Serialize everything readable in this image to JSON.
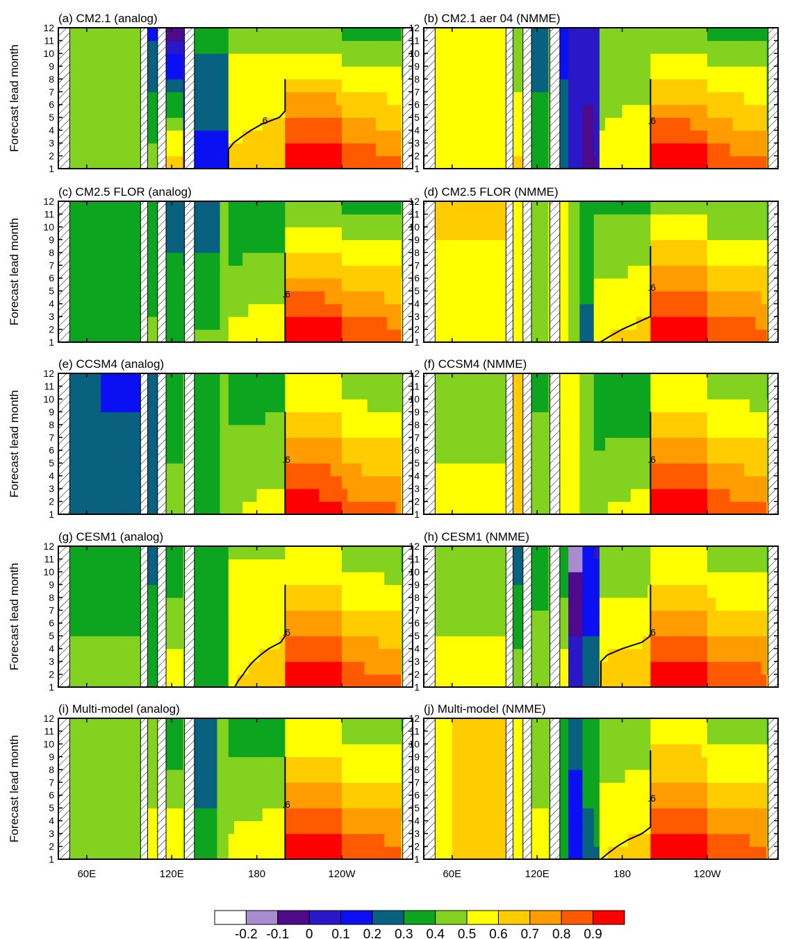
{
  "chart_data": {
    "type": "heatmap",
    "ylabel": "Forecast lead month",
    "y_ticks": [
      1,
      2,
      3,
      4,
      5,
      6,
      7,
      8,
      9,
      10,
      11,
      12
    ],
    "ylim": [
      1,
      12
    ],
    "xlim": [
      40,
      290
    ],
    "x_ticks": [
      {
        "lon": 60,
        "label": "60E"
      },
      {
        "lon": 120,
        "label": "120E"
      },
      {
        "lon": 180,
        "label": "180"
      },
      {
        "lon": 240,
        "label": "120W"
      }
    ],
    "colorbar": {
      "labels": [
        "-0.2",
        "-0.1",
        "0",
        "0.1",
        "0.2",
        "0.3",
        "0.4",
        "0.5",
        "0.6",
        "0.7",
        "0.8",
        "0.9"
      ],
      "levels": [
        -0.2,
        -0.1,
        0,
        0.1,
        0.2,
        0.3,
        0.4,
        0.5,
        0.6,
        0.7,
        0.8,
        0.9
      ],
      "colors": [
        "#ffffff",
        "#a98bcf",
        "#4d0a8a",
        "#2a18c8",
        "#0b10f3",
        "#08617e",
        "#0da520",
        "#82d21f",
        "#ffff00",
        "#ffcc00",
        "#ff9c00",
        "#ff5a00",
        "#ff0000"
      ]
    },
    "contour_level": 0.6,
    "contour_label": ".6",
    "land_mask_lon": [
      [
        40,
        48
      ],
      [
        98,
        103
      ],
      [
        110,
        116
      ],
      [
        129,
        136
      ],
      [
        283,
        290
      ]
    ],
    "panels": [
      {
        "label": "(a) CM2.1 (analog)",
        "bands": [
          [
            48,
            1,
            0.5,
            0.44
          ],
          [
            98,
            1,
            0.43
          ],
          [
            103,
            1,
            0.45,
            0.18
          ],
          [
            110,
            1,
            0.44,
            0.05
          ],
          [
            116,
            1,
            0.68,
            -0.05
          ],
          [
            129,
            1,
            0.0
          ],
          [
            136,
            1,
            0.15,
            0.33
          ],
          [
            160,
            1,
            0.58,
            0.62
          ],
          [
            200,
            1,
            0.96,
            0.55
          ],
          [
            240,
            1,
            0.84,
            0.5
          ],
          [
            283,
            1,
            0.58
          ]
        ]
      },
      {
        "label": "(b) CM2.1 aer 04 (NMME)",
        "bands": [
          [
            48,
            1,
            0.58
          ],
          [
            98,
            1,
            0.58
          ],
          [
            103,
            1,
            0.63,
            0.4
          ],
          [
            110,
            1,
            0.26
          ],
          [
            116,
            1,
            0.4,
            0.2
          ],
          [
            129,
            1,
            0.45
          ],
          [
            136,
            1,
            0.3,
            0.15
          ],
          [
            142,
            1,
            0.05
          ],
          [
            152,
            1,
            -0.05,
            0.05
          ],
          [
            165,
            1,
            0.48,
            0.55
          ],
          [
            200,
            1,
            0.92,
            0.55
          ],
          [
            240,
            1,
            0.83,
            0.5
          ],
          [
            283,
            1,
            0.42
          ]
        ]
      },
      {
        "label": "(c) CM2.5 FLOR (analog)",
        "bands": [
          [
            48,
            1,
            0.4,
            0.35
          ],
          [
            98,
            1,
            0.45
          ],
          [
            103,
            1,
            0.42,
            0.3
          ],
          [
            110,
            1,
            0.28,
            0.18
          ],
          [
            116,
            1,
            0.38,
            0.25
          ],
          [
            129,
            1,
            0.35,
            0.25
          ],
          [
            136,
            1,
            0.42,
            0.22
          ],
          [
            155,
            1,
            0.5,
            0.4
          ],
          [
            200,
            1,
            0.92,
            0.55
          ],
          [
            240,
            1,
            0.85,
            0.5
          ],
          [
            283,
            1,
            0.55
          ]
        ]
      },
      {
        "label": "(d) CM2.5 FLOR (NMME)",
        "bands": [
          [
            48,
            1,
            0.55,
            0.62
          ],
          [
            98,
            1,
            0.55,
            0.62
          ],
          [
            103,
            1,
            0.55
          ],
          [
            110,
            1,
            0.6
          ],
          [
            116,
            1,
            0.5,
            0.4
          ],
          [
            129,
            1,
            0.58
          ],
          [
            136,
            1,
            0.55
          ],
          [
            142,
            1,
            0.45,
            0.4
          ],
          [
            150,
            1,
            0.28,
            0.35
          ],
          [
            160,
            1,
            0.55,
            0.5
          ],
          [
            200,
            1,
            0.95,
            0.6
          ],
          [
            240,
            1,
            0.85,
            0.52
          ],
          [
            283,
            1,
            0.48
          ]
        ]
      },
      {
        "label": "(e) CCSM4 (analog)",
        "bands": [
          [
            48,
            1,
            0.3,
            0.28
          ],
          [
            70,
            1,
            0.25,
            0.18
          ],
          [
            98,
            1,
            0.32
          ],
          [
            103,
            1,
            0.3,
            0.25
          ],
          [
            110,
            1,
            0.2
          ],
          [
            116,
            1,
            0.45,
            0.3
          ],
          [
            129,
            1,
            0.4
          ],
          [
            136,
            1,
            0.35,
            0.3
          ],
          [
            155,
            1,
            0.45,
            0.45
          ],
          [
            200,
            1,
            0.88,
            0.65
          ],
          [
            240,
            1,
            0.8,
            0.55
          ],
          [
            283,
            1,
            0.55
          ]
        ]
      },
      {
        "label": "(f) CCSM4 (NMME)",
        "bands": [
          [
            48,
            1,
            0.55,
            0.4
          ],
          [
            98,
            1,
            0.52
          ],
          [
            103,
            1,
            0.6
          ],
          [
            110,
            1,
            0.48
          ],
          [
            116,
            1,
            0.45,
            0.38
          ],
          [
            129,
            1,
            0.4
          ],
          [
            136,
            1,
            0.55
          ],
          [
            150,
            1,
            0.45,
            0.4
          ],
          [
            200,
            1,
            0.9,
            0.65
          ],
          [
            240,
            1,
            0.82,
            0.55
          ],
          [
            283,
            1,
            0.5
          ]
        ]
      },
      {
        "label": "(g) CESM1 (analog)",
        "bands": [
          [
            48,
            1,
            0.45,
            0.3
          ],
          [
            98,
            1,
            0.4
          ],
          [
            103,
            1,
            0.35,
            0.28
          ],
          [
            110,
            1,
            0.3
          ],
          [
            116,
            1,
            0.58,
            0.3
          ],
          [
            129,
            1,
            0.45
          ],
          [
            136,
            1,
            0.4,
            0.32
          ],
          [
            160,
            1,
            0.55,
            0.65
          ],
          [
            200,
            1,
            0.9,
            0.65
          ],
          [
            240,
            1,
            0.82,
            0.55
          ],
          [
            283,
            1,
            0.5
          ]
        ]
      },
      {
        "label": "(h) CESM1 (NMME)",
        "bands": [
          [
            48,
            1,
            0.55,
            0.4
          ],
          [
            98,
            1,
            0.48
          ],
          [
            103,
            1,
            0.45,
            0.25
          ],
          [
            110,
            1,
            0.02
          ],
          [
            116,
            1,
            0.45,
            0.35
          ],
          [
            129,
            1,
            0.4
          ],
          [
            136,
            1,
            0.58,
            0.3
          ],
          [
            142,
            1,
            0.1,
            -0.15
          ],
          [
            152,
            1,
            0.25,
            0.1
          ],
          [
            165,
            1,
            0.6,
            0.55
          ],
          [
            200,
            1,
            0.92,
            0.65
          ],
          [
            240,
            1,
            0.85,
            0.55
          ],
          [
            283,
            1,
            0.5
          ]
        ]
      },
      {
        "label": "(i) Multi-model (analog)",
        "bands": [
          [
            48,
            1,
            0.45,
            0.4
          ],
          [
            98,
            1,
            0.58
          ],
          [
            103,
            1,
            0.55,
            0.4
          ],
          [
            110,
            1,
            0.35
          ],
          [
            116,
            1,
            0.6,
            0.3
          ],
          [
            129,
            1,
            0.45
          ],
          [
            136,
            1,
            0.35,
            0.2
          ],
          [
            152,
            1,
            0.5,
            0.45
          ],
          [
            200,
            1,
            0.92,
            0.65
          ],
          [
            240,
            1,
            0.84,
            0.55
          ],
          [
            283,
            1,
            0.52
          ]
        ]
      },
      {
        "label": "(j) Multi-model (NMME)",
        "bands": [
          [
            48,
            1,
            0.55,
            0.5
          ],
          [
            60,
            1,
            0.62
          ],
          [
            98,
            1,
            0.55
          ],
          [
            103,
            1,
            0.58
          ],
          [
            110,
            1,
            0.5
          ],
          [
            116,
            1,
            0.55,
            0.4
          ],
          [
            129,
            1,
            0.4
          ],
          [
            136,
            1,
            0.4,
            0.3
          ],
          [
            142,
            1,
            0.1,
            0.25
          ],
          [
            152,
            1,
            0.25,
            0.4
          ],
          [
            165,
            1,
            0.55,
            0.55
          ],
          [
            200,
            1,
            0.93,
            0.66
          ],
          [
            240,
            1,
            0.84,
            0.55
          ],
          [
            283,
            1,
            0.5
          ]
        ]
      }
    ]
  }
}
